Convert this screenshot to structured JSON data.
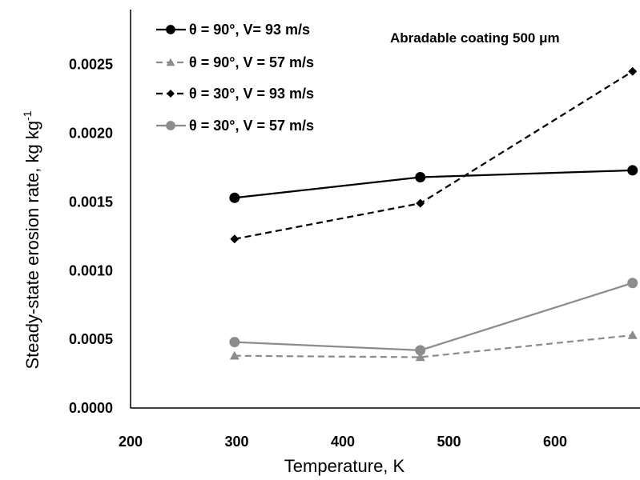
{
  "chart_data": {
    "type": "line",
    "title": "",
    "annotation": "Abradable coating 500 μm",
    "xlabel": "Temperature, K",
    "ylabel": "Steady-state erosion rate, kg kg",
    "ylabel_sup": "-1",
    "xlim": [
      200,
      680
    ],
    "ylim": [
      0,
      0.0029
    ],
    "x_ticks": [
      "200",
      "300",
      "400",
      "500",
      "600"
    ],
    "y_ticks": [
      "0.0000",
      "0.0005",
      "0.0010",
      "0.0015",
      "0.0020",
      "0.0025"
    ],
    "grid": false,
    "legend_position": "top-left",
    "x": [
      298,
      473,
      673
    ],
    "series": [
      {
        "name": "θ = 90°, V= 93 m/s",
        "values": [
          0.00153,
          0.00168,
          0.00173
        ],
        "color": "#000000",
        "dash": "solid",
        "marker": "circle"
      },
      {
        "name": "θ = 90°, V = 57 m/s",
        "values": [
          0.00038,
          0.00037,
          0.00053
        ],
        "color": "#8c8c8c",
        "dash": "dashed",
        "marker": "triangle"
      },
      {
        "name": "θ = 30°, V = 93 m/s",
        "values": [
          0.00123,
          0.00149,
          0.00245
        ],
        "color": "#000000",
        "dash": "dashed",
        "marker": "diamond"
      },
      {
        "name": "θ = 30°, V = 57 m/s",
        "values": [
          0.00048,
          0.00042,
          0.00091
        ],
        "color": "#8c8c8c",
        "dash": "solid",
        "marker": "circle"
      }
    ]
  }
}
